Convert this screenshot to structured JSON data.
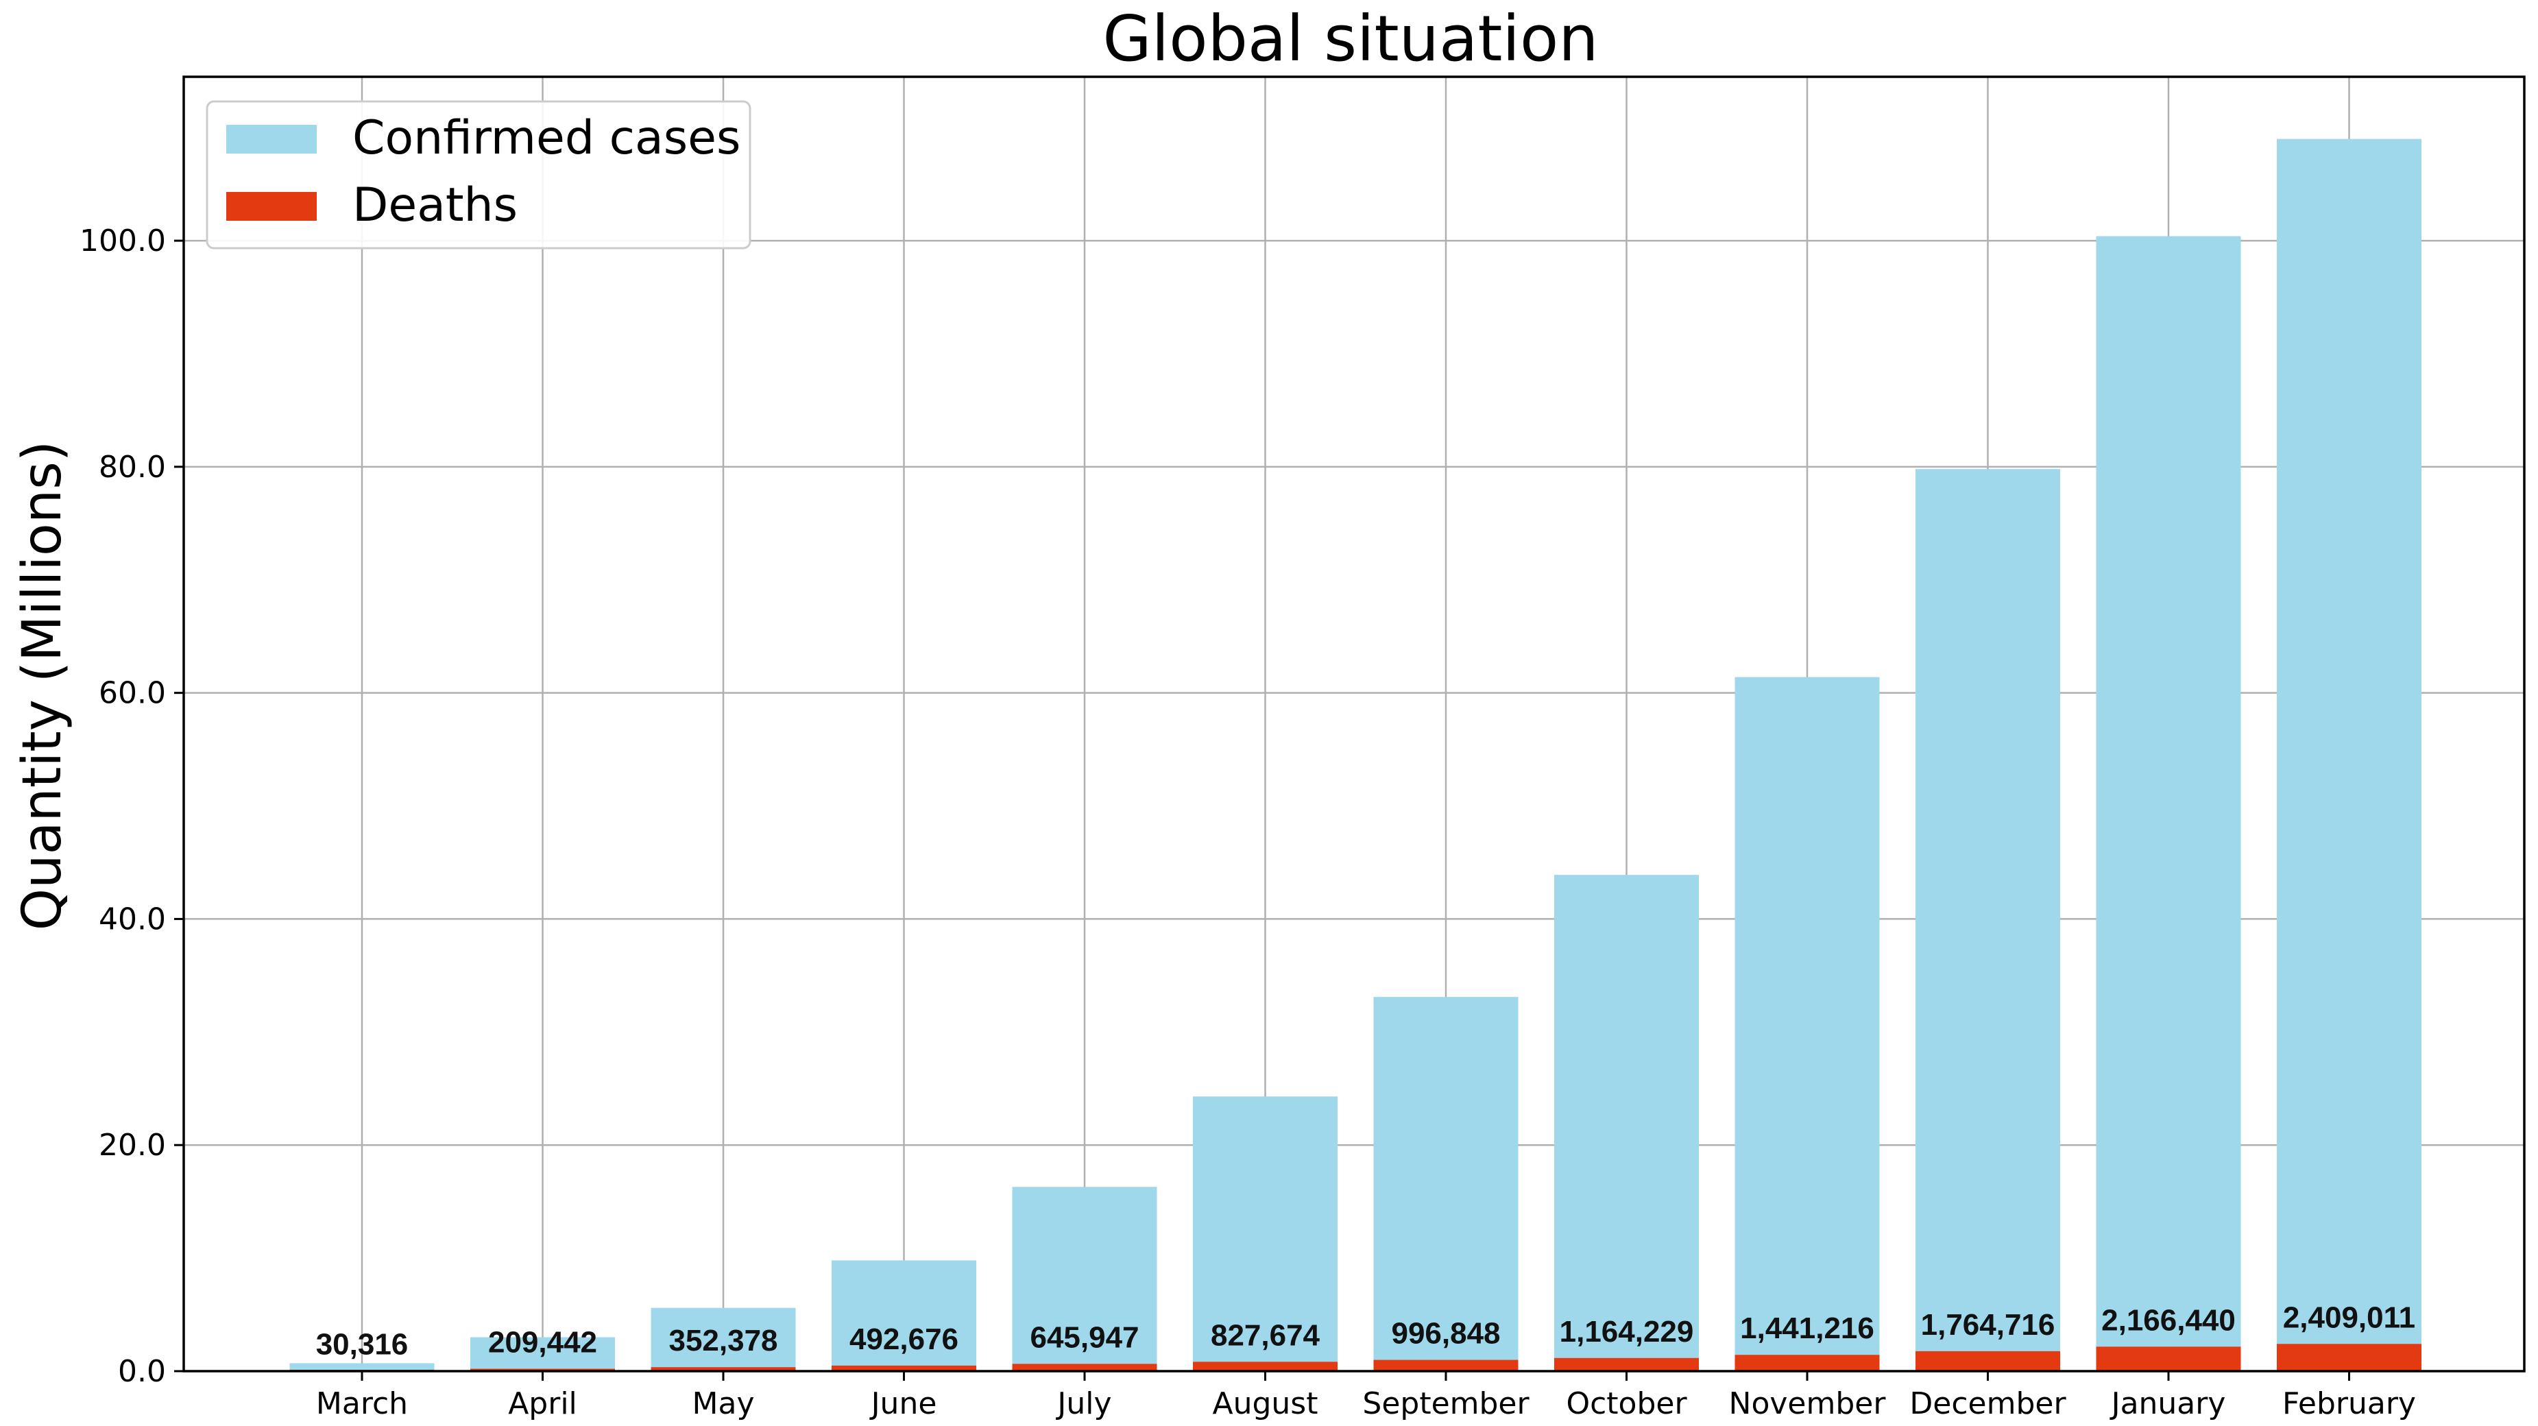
{
  "colors": {
    "confirmed": "#9fd8ea",
    "deaths": "#e33a12",
    "grid": "#b0b0b0",
    "axis": "#000000"
  },
  "chart_data": {
    "type": "bar",
    "title": "Global situation",
    "xlabel": "",
    "ylabel": "Quantity (Millions)",
    "ylim": [
      0,
      114.5
    ],
    "yticks": [
      0,
      20,
      40,
      60,
      80,
      100
    ],
    "ytick_labels": [
      "0.0",
      "20.0",
      "40.0",
      "60.0",
      "80.0",
      "100.0"
    ],
    "grid": true,
    "legend_position": "top-left",
    "categories": [
      "March",
      "April",
      "May",
      "June",
      "July",
      "August",
      "September",
      "October",
      "November",
      "December",
      "January",
      "February"
    ],
    "series": [
      {
        "name": "Confirmed cases",
        "color_key": "confirmed",
        "values": [
          0.7,
          3.0,
          5.6,
          9.8,
          16.3,
          24.3,
          33.1,
          43.9,
          61.4,
          79.8,
          100.4,
          109.0
        ]
      },
      {
        "name": "Deaths",
        "color_key": "deaths",
        "values": [
          0.030316,
          0.209442,
          0.352378,
          0.492676,
          0.645947,
          0.827674,
          0.996848,
          1.164229,
          1.441216,
          1.764716,
          2.16644,
          2.409011
        ]
      }
    ],
    "data_labels": [
      "30,316",
      "209,442",
      "352,378",
      "492,676",
      "645,947",
      "827,674",
      "996,848",
      "1,164,229",
      "1,441,216",
      "1,764,716",
      "2,166,440",
      "2,409,011"
    ]
  }
}
